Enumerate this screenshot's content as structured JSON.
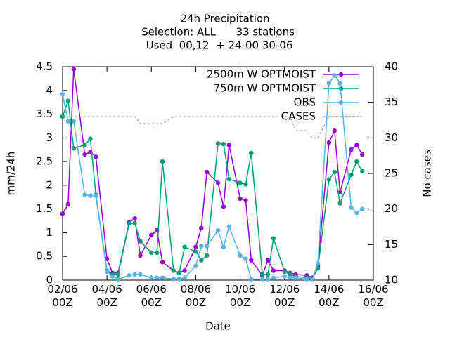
{
  "chart_data": {
    "type": "line",
    "title": "24h Precipitation",
    "subtitle": [
      "Selection: ALL      33 stations",
      "Used  00,12  + 24-00 30-06"
    ],
    "xlabel": "Date",
    "ylabel": "mm/24h",
    "y2label": "No cases",
    "x": [
      0,
      6,
      12,
      24,
      30,
      36,
      48,
      54,
      60,
      72,
      78,
      84,
      96,
      102,
      108,
      120,
      126,
      132,
      144,
      150,
      156,
      168,
      174,
      180,
      192,
      198,
      204,
      216,
      222,
      228,
      240,
      246,
      252,
      264,
      270,
      276,
      288,
      294,
      300,
      312,
      318,
      324
    ],
    "xlim": [
      0,
      336
    ],
    "xticks": [
      {
        "value": 0,
        "label": "02/06\n00Z"
      },
      {
        "value": 48,
        "label": "04/06\n00Z"
      },
      {
        "value": 96,
        "label": "06/06\n00Z"
      },
      {
        "value": 144,
        "label": "08/06\n00Z"
      },
      {
        "value": 192,
        "label": "10/06\n00Z"
      },
      {
        "value": 240,
        "label": "12/06\n00Z"
      },
      {
        "value": 288,
        "label": "14/06\n00Z"
      },
      {
        "value": 336,
        "label": "16/06\n00Z"
      }
    ],
    "ylim": [
      0,
      4.5
    ],
    "yticks": [
      0,
      0.5,
      1,
      1.5,
      2,
      2.5,
      3,
      3.5,
      4,
      4.5
    ],
    "y2lim": [
      10,
      40
    ],
    "y2ticks": [
      10,
      15,
      20,
      25,
      30,
      35,
      40
    ],
    "series": [
      {
        "name": "2500m W OPTMOIST",
        "color": "#9400d3",
        "values": [
          1.4,
          1.6,
          4.45,
          2.65,
          2.7,
          2.6,
          0.45,
          0.15,
          0.15,
          1.22,
          1.3,
          0.52,
          0.95,
          1.05,
          0.38,
          0.2,
          0.15,
          0.2,
          0.7,
          1.1,
          2.28,
          2.05,
          1.55,
          2.85,
          1.72,
          1.68,
          0.42,
          0.1,
          0.42,
          0.2,
          0.2,
          0.15,
          0.12,
          0.1,
          0.05,
          0.3,
          2.9,
          3.15,
          1.85,
          2.75,
          2.85,
          2.65
        ]
      },
      {
        "name": "750m W OPTMOIST",
        "color": "#009e73",
        "values": [
          3.45,
          3.78,
          2.78,
          2.85,
          2.98,
          1.8,
          0.2,
          0.12,
          0.12,
          1.2,
          1.2,
          0.82,
          0.58,
          0.58,
          2.5,
          0.2,
          0.15,
          0.7,
          0.6,
          0.42,
          0.52,
          2.88,
          2.87,
          2.13,
          2.05,
          2.02,
          2.68,
          0.12,
          0.12,
          0.88,
          0.18,
          0.12,
          0.08,
          0.05,
          0.03,
          0.25,
          2.12,
          2.28,
          1.62,
          2.22,
          2.5,
          2.3
        ]
      },
      {
        "name": "OBS",
        "color": "#56b4e9",
        "values": [
          3.92,
          3.35,
          3.35,
          1.8,
          1.78,
          1.78,
          0.18,
          0.08,
          0.02,
          0.1,
          0.12,
          0.12,
          0.05,
          0.05,
          0.05,
          0.02,
          0.02,
          0.05,
          0.3,
          0.72,
          0.72,
          1.05,
          0.7,
          1.13,
          0.52,
          0.45,
          0.02,
          0.02,
          0.02,
          0.05,
          0.08,
          0.05,
          0.05,
          0.02,
          0.02,
          0.35,
          4.15,
          4.32,
          4.15,
          1.53,
          1.42,
          1.5
        ]
      },
      {
        "name": "CASES",
        "color": "#a0a0a0",
        "axis": "y2",
        "dashed": true,
        "values": [
          33,
          33,
          33,
          33,
          33,
          33,
          33,
          33,
          33,
          33,
          33,
          32,
          32,
          32,
          32,
          33,
          33,
          33,
          33,
          33,
          33,
          33,
          33,
          33,
          33,
          33,
          33,
          33,
          33,
          33,
          33,
          33,
          31,
          31,
          30,
          30,
          33,
          33,
          33,
          33,
          33,
          33
        ]
      }
    ]
  }
}
